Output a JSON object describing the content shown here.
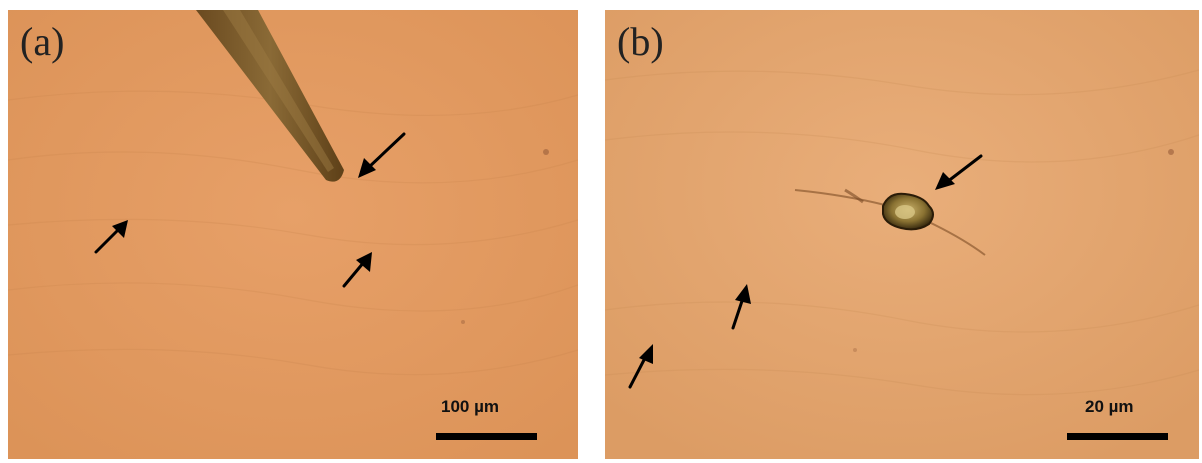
{
  "panels": [
    {
      "label": "(a)",
      "scale_text": "100 µm"
    },
    {
      "label": "(b)",
      "scale_text": "20 µm"
    }
  ],
  "colors": {
    "panel_a_background": "#e39a62",
    "panel_b_background": "#e2a46f",
    "arrows": "#000000",
    "probe_tip": "#7a5a2c",
    "particle": "#6b5a22"
  }
}
